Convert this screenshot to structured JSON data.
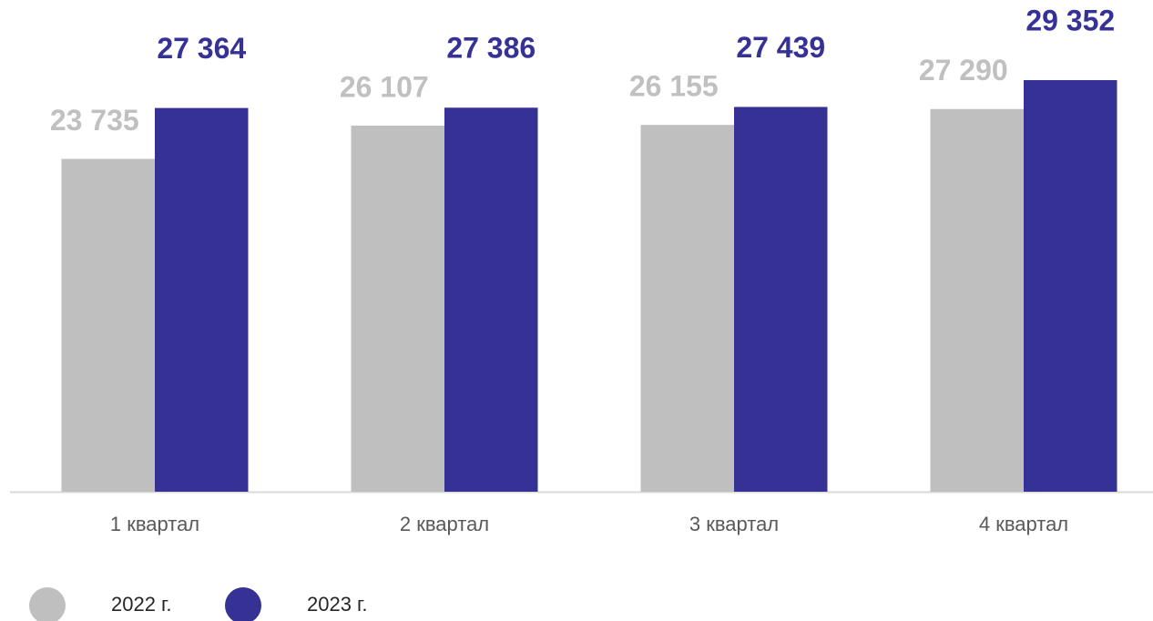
{
  "chart_data": {
    "type": "bar",
    "categories": [
      "1 квартал",
      "2 квартал",
      "3 квартал",
      "4 квартал"
    ],
    "series": [
      {
        "name": "2022 г.",
        "color": "#bfbfbf",
        "label_color": "#c0c0c0",
        "values": [
          23735,
          26107,
          26155,
          27290
        ],
        "value_labels": [
          "23 735",
          "26 107",
          "26 155",
          "27 290"
        ]
      },
      {
        "name": "2023 г.",
        "color": "#363194",
        "label_color": "#363194",
        "values": [
          27364,
          27386,
          27439,
          29352
        ],
        "value_labels": [
          "27 364",
          "27 386",
          "27 439",
          "29 352"
        ]
      }
    ],
    "ylim": [
      0,
      35000
    ]
  }
}
